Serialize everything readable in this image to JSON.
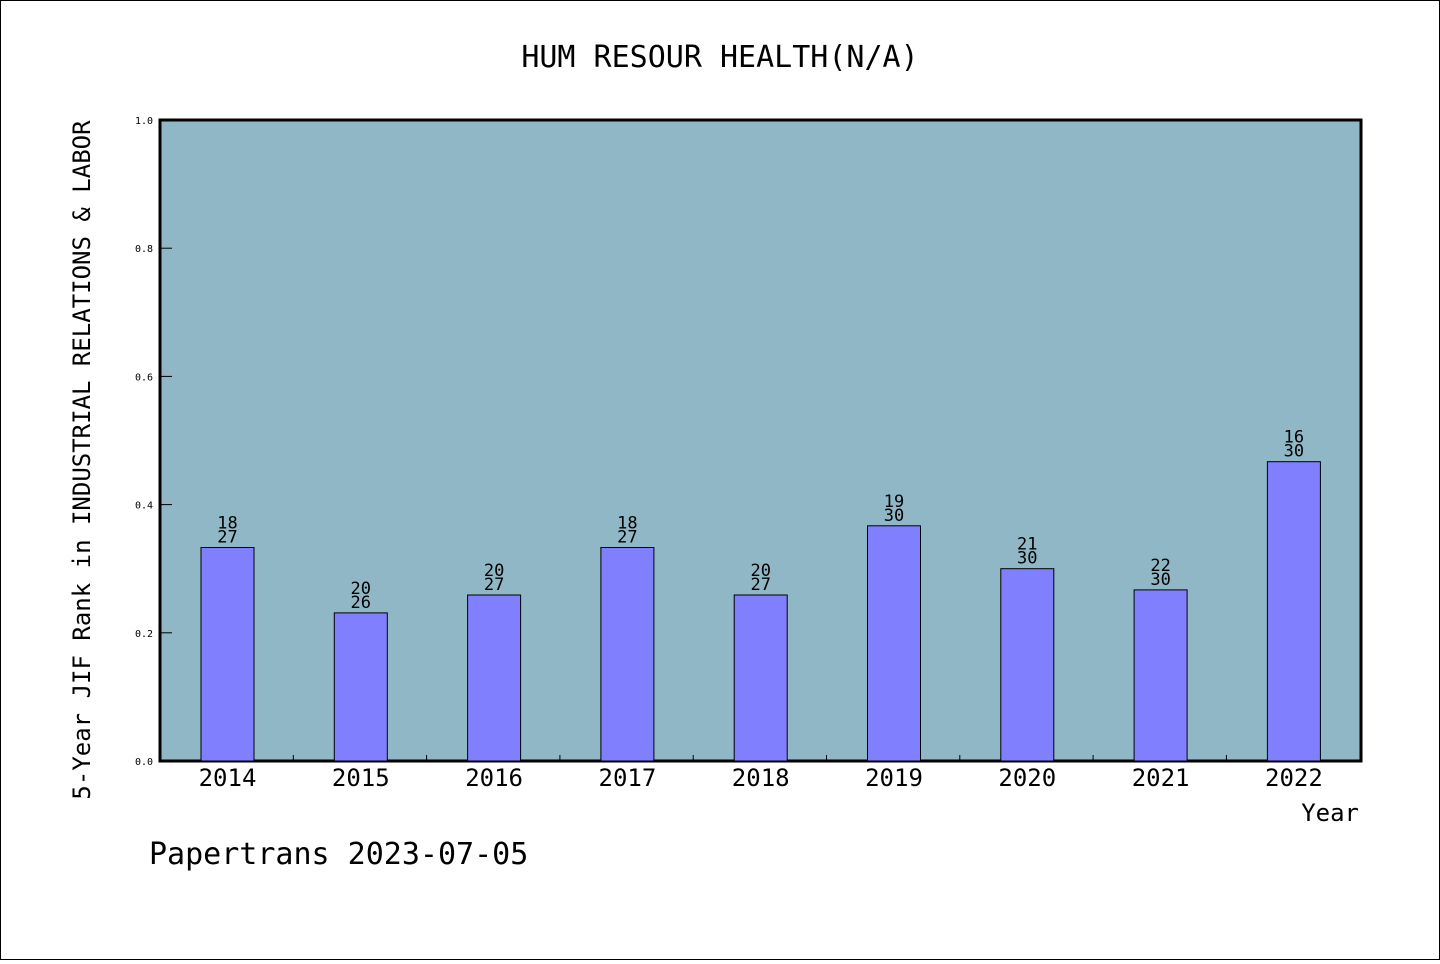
{
  "chart_data": {
    "type": "bar",
    "title": "HUM RESOUR HEALTH(N/A)",
    "xlabel": "Year",
    "ylabel": "5-Year JIF Rank in INDUSTRIAL RELATIONS & LABOR",
    "categories": [
      "2014",
      "2015",
      "2016",
      "2017",
      "2018",
      "2019",
      "2020",
      "2021",
      "2022"
    ],
    "values": [
      0.333,
      0.231,
      0.259,
      0.333,
      0.259,
      0.367,
      0.3,
      0.267,
      0.467
    ],
    "ranks": [
      "18",
      "20",
      "20",
      "18",
      "20",
      "19",
      "21",
      "22",
      "16"
    ],
    "totals": [
      "27",
      "26",
      "27",
      "27",
      "27",
      "30",
      "30",
      "30",
      "30"
    ],
    "ylim": [
      0,
      1.0
    ],
    "yticks": [
      "0.0",
      "0.2",
      "0.4",
      "0.6",
      "0.8",
      "1.0"
    ],
    "grid": false,
    "colors": {
      "plot_bg": "#8fb7c5",
      "bar": "#8080ff"
    }
  },
  "footer": {
    "text": "Papertrans 2023-07-05"
  }
}
